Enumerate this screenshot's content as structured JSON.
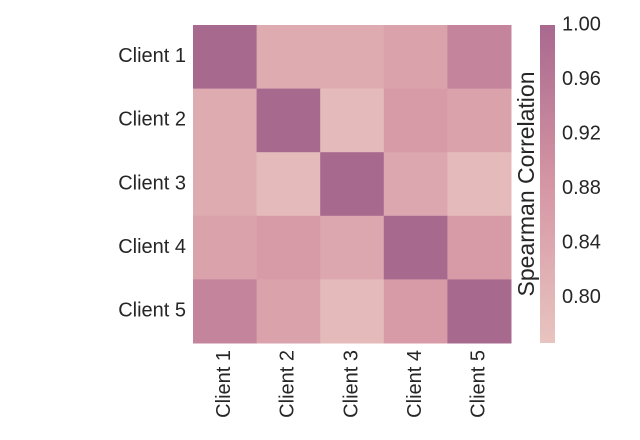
{
  "chart_data": {
    "type": "heatmap",
    "x_categories": [
      "Client 1",
      "Client 2",
      "Client 3",
      "Client 4",
      "Client 5"
    ],
    "y_categories": [
      "Client 1",
      "Client 2",
      "Client 3",
      "Client 4",
      "Client 5"
    ],
    "values": [
      [
        1.0,
        0.83,
        0.83,
        0.85,
        0.93
      ],
      [
        0.83,
        1.0,
        0.79,
        0.87,
        0.85
      ],
      [
        0.83,
        0.79,
        1.0,
        0.84,
        0.79
      ],
      [
        0.85,
        0.87,
        0.84,
        1.0,
        0.87
      ],
      [
        0.93,
        0.85,
        0.79,
        0.87,
        1.0
      ]
    ],
    "colorscale": [
      "#e8c4c0",
      "#d596a4",
      "#a8698f"
    ],
    "clim": [
      0.767,
      1.0
    ],
    "colorbar_label": "Spearman Correlation",
    "cticks": [
      {
        "value": 1.0,
        "label": "1.00"
      },
      0.96,
      0.92,
      0.88,
      0.84,
      {
        "value": 0.8,
        "label": "0.80"
      }
    ]
  }
}
